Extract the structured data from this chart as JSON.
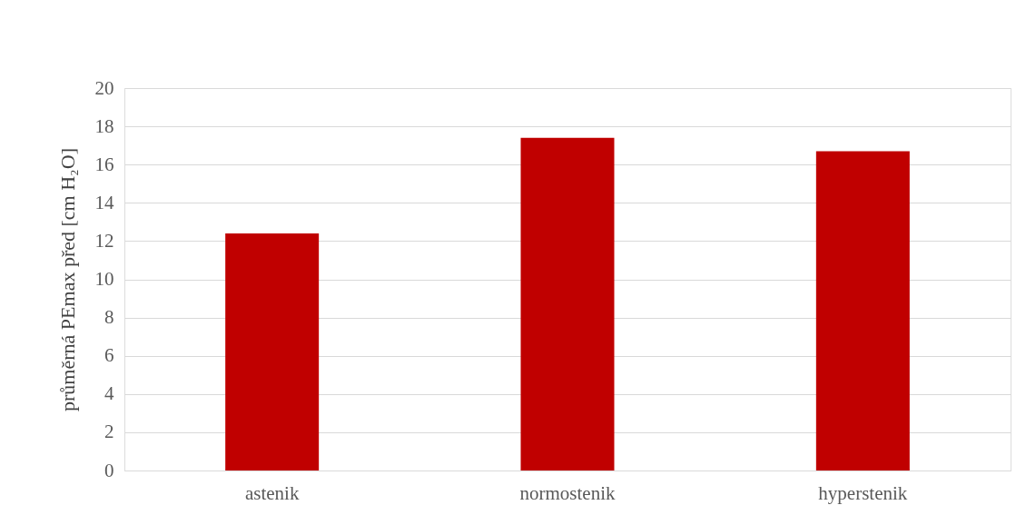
{
  "chart_data": {
    "type": "bar",
    "ylabel": "průměrná PEmax před [cm H₂O]",
    "categories": [
      "astenik",
      "normostenik",
      "hyperstenik"
    ],
    "values": [
      12.4,
      17.4,
      16.7
    ],
    "color": "#c00000",
    "ylim": [
      0,
      20
    ],
    "yticks": [
      0,
      2,
      4,
      6,
      8,
      10,
      12,
      14,
      16,
      18,
      20
    ],
    "grid": "y"
  }
}
